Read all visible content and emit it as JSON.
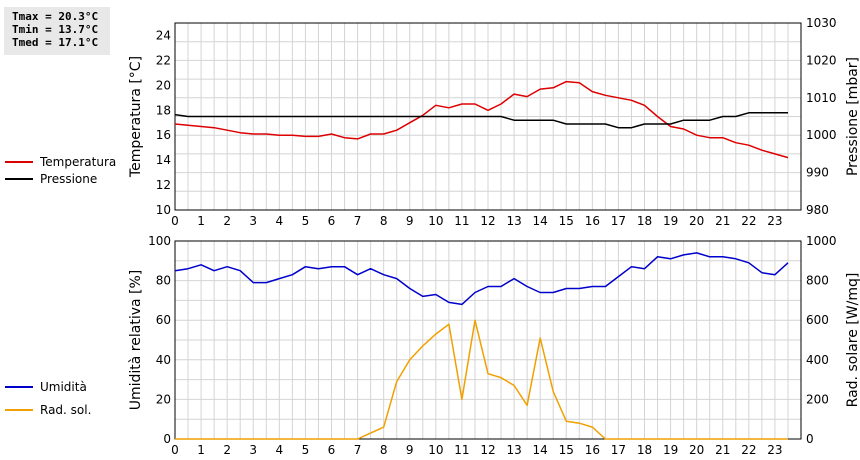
{
  "stats": {
    "tmax": "Tmax = 20.3°C",
    "tmin": "Tmin = 13.7°C",
    "tmed": "Tmed = 17.1°C"
  },
  "chart_data": [
    {
      "type": "line",
      "x_ticks": [
        "0",
        "1",
        "2",
        "3",
        "4",
        "5",
        "6",
        "7",
        "8",
        "9",
        "10",
        "11",
        "12",
        "13",
        "14",
        "15",
        "16",
        "17",
        "18",
        "19",
        "20",
        "21",
        "22",
        "23"
      ],
      "xlim": [
        0,
        24
      ],
      "ylabel_left": "Temperatura [°C]",
      "ylim_left": [
        10,
        25
      ],
      "yticks_left": [
        "10",
        "12",
        "14",
        "16",
        "18",
        "20",
        "22",
        "24"
      ],
      "ylabel_right": "Pressione [mbar]",
      "ylim_right": [
        980,
        1030
      ],
      "yticks_right": [
        "980",
        "990",
        "1000",
        "1010",
        "1020",
        "1030"
      ],
      "grid": true,
      "legend_position": "left",
      "series": [
        {
          "name": "Temperatura",
          "axis": "left",
          "color": "#dd0000",
          "x": [
            0,
            0.5,
            1,
            1.5,
            2,
            2.5,
            3,
            3.5,
            4,
            4.5,
            5,
            5.5,
            6,
            6.5,
            7,
            7.5,
            8,
            8.5,
            9,
            9.5,
            10,
            10.5,
            11,
            11.5,
            12,
            12.5,
            13,
            13.5,
            14,
            14.5,
            15,
            15.5,
            16,
            16.5,
            17,
            17.5,
            18,
            18.5,
            19,
            19.5,
            20,
            20.5,
            21,
            21.5,
            22,
            22.5,
            23,
            23.5
          ],
          "values": [
            16.9,
            16.8,
            16.7,
            16.6,
            16.4,
            16.2,
            16.1,
            16.1,
            16.0,
            16.0,
            15.9,
            15.9,
            16.1,
            15.8,
            15.7,
            16.1,
            16.1,
            16.4,
            17.0,
            17.6,
            18.4,
            18.2,
            18.5,
            18.5,
            18.0,
            18.5,
            19.3,
            19.1,
            19.7,
            19.8,
            20.3,
            20.2,
            19.5,
            19.2,
            19.0,
            18.8,
            18.4,
            17.5,
            16.7,
            16.5,
            16.0,
            15.8,
            15.8,
            15.4,
            15.2,
            14.8,
            14.5,
            14.2
          ]
        },
        {
          "name": "Pressione",
          "axis": "right",
          "color": "#000000",
          "x": [
            0,
            0.5,
            1,
            1.5,
            2,
            2.5,
            3,
            3.5,
            4,
            4.5,
            5,
            5.5,
            6,
            6.5,
            7,
            7.5,
            8,
            8.5,
            9,
            9.5,
            10,
            10.5,
            11,
            11.5,
            12,
            12.5,
            13,
            13.5,
            14,
            14.5,
            15,
            15.5,
            16,
            16.5,
            17,
            17.5,
            18,
            18.5,
            19,
            19.5,
            20,
            20.5,
            21,
            21.5,
            22,
            22.5,
            23,
            23.5
          ],
          "values": [
            1005.5,
            1005,
            1005,
            1005,
            1005,
            1005,
            1005,
            1005,
            1005,
            1005,
            1005,
            1005,
            1005,
            1005,
            1005,
            1005,
            1005,
            1005,
            1005,
            1005,
            1005,
            1005,
            1005,
            1005,
            1005,
            1005,
            1004,
            1004,
            1004,
            1004,
            1003,
            1003,
            1003,
            1003,
            1002,
            1002,
            1003,
            1003,
            1003,
            1004,
            1004,
            1004,
            1005,
            1005,
            1006,
            1006,
            1006,
            1006
          ]
        }
      ]
    },
    {
      "type": "line",
      "x_ticks": [
        "0",
        "1",
        "2",
        "3",
        "4",
        "5",
        "6",
        "7",
        "8",
        "9",
        "10",
        "11",
        "12",
        "13",
        "14",
        "15",
        "16",
        "17",
        "18",
        "19",
        "20",
        "21",
        "22",
        "23"
      ],
      "xlim": [
        0,
        24
      ],
      "ylabel_left": "Umidità relativa [%]",
      "ylim_left": [
        0,
        100
      ],
      "yticks_left": [
        "0",
        "20",
        "40",
        "60",
        "80",
        "100"
      ],
      "ylabel_right": "Rad. solare [W/mq]",
      "ylim_right": [
        0,
        1000
      ],
      "yticks_right": [
        "0",
        "200",
        "400",
        "600",
        "800",
        "1000"
      ],
      "grid": true,
      "legend_position": "left",
      "series": [
        {
          "name": "Umidità",
          "axis": "left",
          "color": "#0000cc",
          "x": [
            0,
            0.5,
            1,
            1.5,
            2,
            2.5,
            3,
            3.5,
            4,
            4.5,
            5,
            5.5,
            6,
            6.5,
            7,
            7.5,
            8,
            8.5,
            9,
            9.5,
            10,
            10.5,
            11,
            11.5,
            12,
            12.5,
            13,
            13.5,
            14,
            14.5,
            15,
            15.5,
            16,
            16.5,
            17,
            17.5,
            18,
            18.5,
            19,
            19.5,
            20,
            20.5,
            21,
            21.5,
            22,
            22.5,
            23,
            23.5
          ],
          "values": [
            85,
            86,
            88,
            85,
            87,
            85,
            79,
            79,
            81,
            83,
            87,
            86,
            87,
            87,
            83,
            86,
            83,
            81,
            76,
            72,
            73,
            69,
            68,
            74,
            77,
            77,
            81,
            77,
            74,
            74,
            76,
            76,
            77,
            77,
            82,
            87,
            86,
            92,
            91,
            93,
            94,
            92,
            92,
            91,
            89,
            84,
            83,
            89
          ]
        },
        {
          "name": "Rad. sol.",
          "axis": "right",
          "color": "#f0a000",
          "x": [
            0,
            1,
            2,
            3,
            4,
            5,
            6,
            7,
            7.5,
            8,
            8.5,
            9,
            9.5,
            10,
            10.5,
            11,
            11.5,
            12,
            12.5,
            13,
            13.5,
            14,
            14.5,
            15,
            15.5,
            16,
            16.5,
            17,
            17.5,
            18,
            19,
            20,
            21,
            22,
            23,
            23.5
          ],
          "values": [
            0,
            0,
            0,
            0,
            0,
            0,
            0,
            0,
            30,
            60,
            290,
            400,
            470,
            530,
            580,
            200,
            600,
            330,
            310,
            270,
            170,
            510,
            240,
            90,
            80,
            60,
            0,
            0,
            0,
            0,
            0,
            0,
            0,
            0,
            0,
            0
          ]
        }
      ]
    }
  ]
}
